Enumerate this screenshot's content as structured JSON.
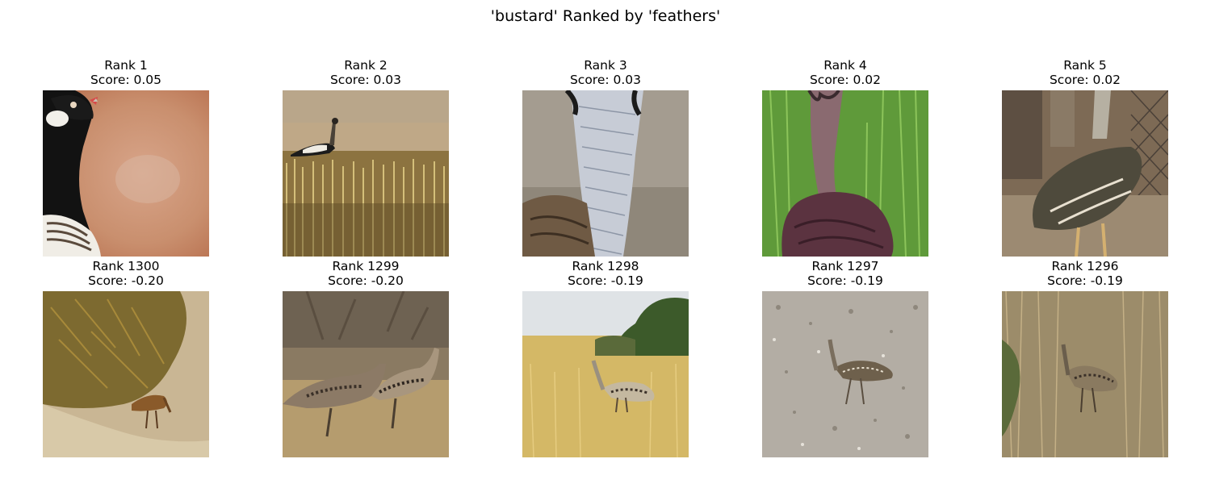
{
  "figure": {
    "title": "'bustard' Ranked by 'feathers'"
  },
  "top_row": [
    {
      "rank_label": "Rank 1",
      "score_label": "Score: 0.05",
      "photo": "bustard-head-closeup-photo"
    },
    {
      "rank_label": "Rank 2",
      "score_label": "Score: 0.03",
      "photo": "bustard-in-stubble-field-photo"
    },
    {
      "rank_label": "Rank 3",
      "score_label": "Score: 0.03",
      "photo": "bustard-neck-feathers-photo"
    },
    {
      "rank_label": "Rank 4",
      "score_label": "Score: 0.02",
      "photo": "bustard-on-green-grass-photo"
    },
    {
      "rank_label": "Rank 5",
      "score_label": "Score: 0.02",
      "photo": "bustard-by-fence-photo"
    }
  ],
  "bottom_row": [
    {
      "rank_label": "Rank 1300",
      "score_label": "Score: -0.20",
      "photo": "bustard-under-bush-photo"
    },
    {
      "rank_label": "Rank 1299",
      "score_label": "Score: -0.20",
      "photo": "two-bustards-walking-photo"
    },
    {
      "rank_label": "Rank 1298",
      "score_label": "Score: -0.19",
      "photo": "bustard-in-savanna-photo"
    },
    {
      "rank_label": "Rank 1297",
      "score_label": "Score: -0.19",
      "photo": "bustard-on-gravel-photo"
    },
    {
      "rank_label": "Rank 1296",
      "score_label": "Score: -0.19",
      "photo": "bustard-in-dry-grass-photo"
    }
  ]
}
